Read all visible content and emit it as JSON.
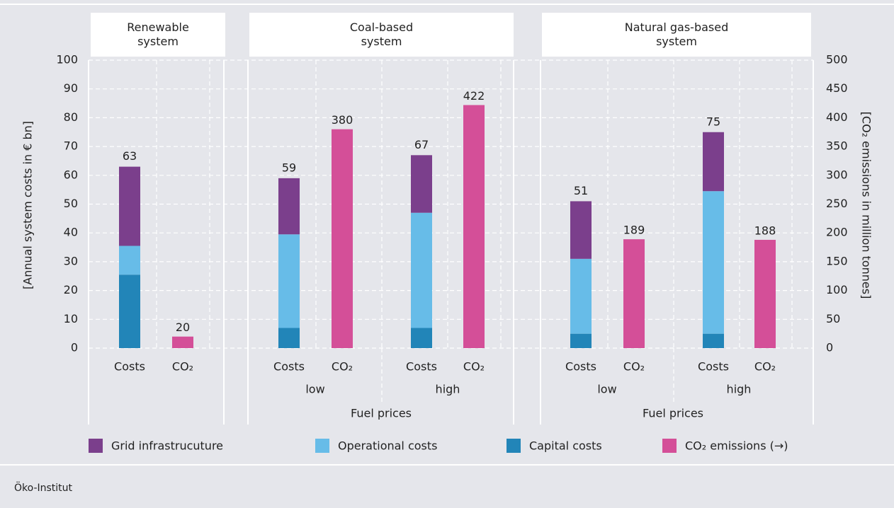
{
  "chart_data": {
    "type": "bar",
    "groups": [
      {
        "name": "Renewable system"
      },
      {
        "name": "Coal-based system",
        "sublabel": "Fuel prices"
      },
      {
        "name": "Natural gas-based system",
        "sublabel": "Fuel prices"
      }
    ],
    "categories": [
      "Costs",
      "CO₂",
      "Costs",
      "CO₂",
      "Costs",
      "CO₂",
      "Costs",
      "CO₂",
      "Costs",
      "CO₂"
    ],
    "price_levels": [
      "low",
      "high",
      "low",
      "high"
    ],
    "series": [
      {
        "name": "Grid infrastrucuture",
        "color": "#7b3f8c",
        "values": [
          27.5,
          null,
          19.5,
          null,
          20,
          null,
          20,
          null,
          20.5,
          null
        ]
      },
      {
        "name": "Operational costs",
        "color": "#67bce8",
        "values": [
          10,
          null,
          32.5,
          null,
          40,
          null,
          26,
          null,
          49.5,
          null
        ]
      },
      {
        "name": "Capital costs",
        "color": "#2285b8",
        "values": [
          25.5,
          null,
          7,
          null,
          7,
          null,
          5,
          null,
          5,
          null
        ]
      },
      {
        "name": "CO₂ emissions (→)",
        "color": "#d44f98",
        "axis": "y2",
        "values": [
          null,
          20,
          null,
          380,
          null,
          422,
          null,
          189,
          null,
          188
        ]
      }
    ],
    "totals": [
      63,
      null,
      59,
      null,
      67,
      null,
      51,
      null,
      75,
      null
    ],
    "ylabel": "[Annual system costs in € bn]",
    "y2label": "[CO₂ emissions in million tonnes]",
    "ylim": [
      0,
      100
    ],
    "yticks": [
      0,
      10,
      20,
      30,
      40,
      50,
      60,
      70,
      80,
      90,
      100
    ],
    "y2lim": [
      0,
      500
    ],
    "y2ticks": [
      0,
      50,
      100,
      150,
      200,
      250,
      300,
      350,
      400,
      450,
      500
    ],
    "grid": true,
    "source": "Öko-Institut"
  }
}
